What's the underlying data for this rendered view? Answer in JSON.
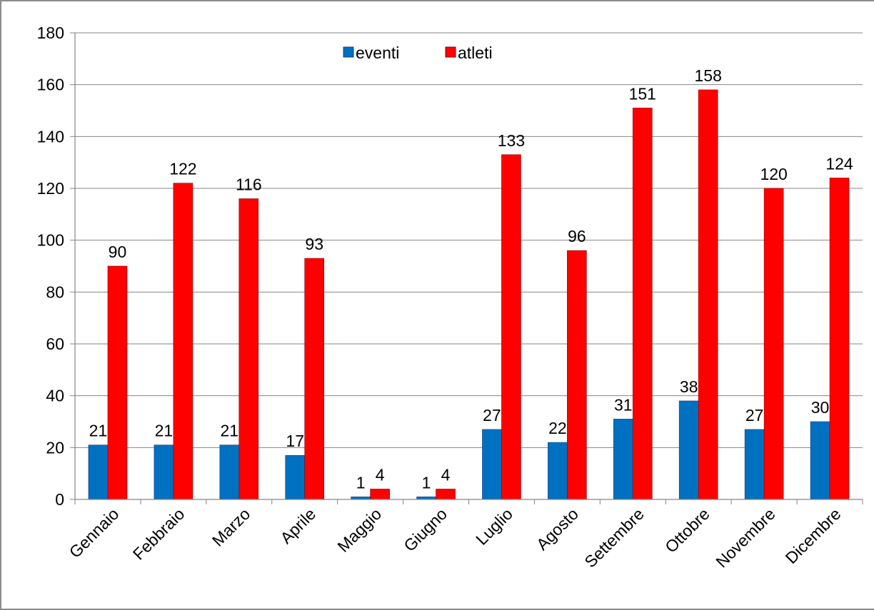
{
  "chart_data": {
    "type": "bar",
    "title": "",
    "xlabel": "",
    "ylabel": "",
    "categories": [
      "Gennaio",
      "Febbraio",
      "Marzo",
      "Aprile",
      "Maggio",
      "Giugno",
      "Luglio",
      "Agosto",
      "Settembre",
      "Ottobre",
      "Novembre",
      "Dicembre"
    ],
    "series": [
      {
        "name": "eventi",
        "color": "#0070C0",
        "values": [
          21,
          21,
          21,
          17,
          1,
          1,
          27,
          22,
          31,
          38,
          27,
          30
        ]
      },
      {
        "name": "atleti",
        "color": "#FF0000",
        "values": [
          90,
          122,
          116,
          93,
          4,
          4,
          133,
          96,
          151,
          158,
          120,
          124
        ]
      }
    ],
    "ylim": [
      0,
      180
    ],
    "yticks": [
      0,
      20,
      40,
      60,
      80,
      100,
      120,
      140,
      160,
      180
    ],
    "grid": true,
    "legend_position": "top-center",
    "data_labels": true
  }
}
